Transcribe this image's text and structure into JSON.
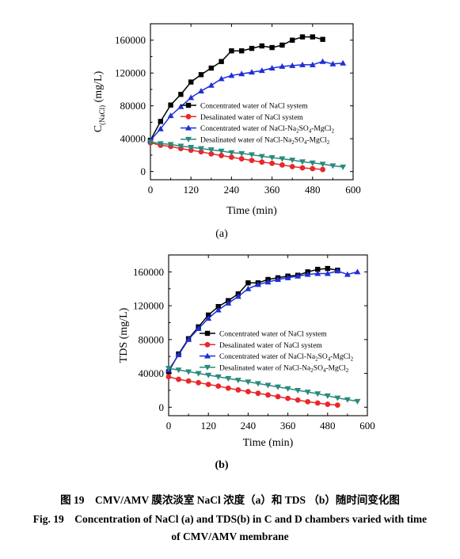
{
  "chart_data": [
    {
      "type": "line",
      "id": "a",
      "xlabel": "Time (min)",
      "ylabel": "C(NaCl) (mg/L)",
      "ylabel_main": "C",
      "ylabel_sub": "(NaCl)",
      "ylabel_unit": " (mg/L)",
      "xlim": [
        0,
        600
      ],
      "ylim": [
        -10000,
        180000
      ],
      "xticks": [
        0,
        120,
        240,
        360,
        480,
        600
      ],
      "yticks": [
        0,
        40000,
        80000,
        120000,
        160000
      ],
      "xtick_labels": [
        "0",
        "120",
        "240",
        "360",
        "480",
        "600"
      ],
      "ytick_labels": [
        "0",
        "40000",
        "80000",
        "120000",
        "160000"
      ],
      "legend_position": "center-right",
      "series": [
        {
          "name": "Concentrated water of NaCl system",
          "legend_parts": [
            "Concentrated water of NaCl system"
          ],
          "marker": "square",
          "color": "#000000",
          "x": [
            0,
            30,
            60,
            90,
            120,
            150,
            180,
            210,
            240,
            270,
            300,
            330,
            360,
            390,
            420,
            450,
            480,
            510
          ],
          "y": [
            38000,
            61000,
            81000,
            94000,
            109000,
            118000,
            126000,
            134000,
            147000,
            147000,
            150000,
            153000,
            151000,
            154000,
            160000,
            164000,
            164000,
            161000
          ]
        },
        {
          "name": "Desalinated water of NaCl system",
          "legend_parts": [
            "Desalinated water of NaCl system"
          ],
          "marker": "circle",
          "color": "#e8282a",
          "x": [
            0,
            30,
            60,
            90,
            120,
            150,
            180,
            210,
            240,
            270,
            300,
            330,
            360,
            390,
            420,
            450,
            480,
            510
          ],
          "y": [
            35000,
            32000,
            30500,
            28000,
            26000,
            24000,
            21500,
            19500,
            17500,
            15500,
            13500,
            11500,
            10000,
            8000,
            6000,
            4500,
            3500,
            2500
          ]
        },
        {
          "name": "Concentrated water of NaCl-Na2SO4-MgCl2",
          "legend_parts": [
            "Concentrated water of NaCl-Na",
            "2",
            "SO",
            "4",
            "-MgCl",
            "2"
          ],
          "marker": "triangle-up",
          "color": "#1f2fd6",
          "x": [
            0,
            30,
            60,
            90,
            120,
            150,
            180,
            210,
            240,
            270,
            300,
            330,
            360,
            390,
            420,
            450,
            480,
            510,
            540,
            570
          ],
          "y": [
            38000,
            52000,
            68000,
            79000,
            90000,
            98000,
            105000,
            113000,
            117000,
            119000,
            121000,
            123000,
            126000,
            128000,
            129000,
            130000,
            130000,
            134000,
            131000,
            132000
          ]
        },
        {
          "name": "Desalinated water of NaCl-Na2SO4-MgCl2",
          "legend_parts": [
            "Desalinated water of NaCl-Na",
            "2",
            "SO",
            "4",
            "-MgCl",
            "2"
          ],
          "marker": "triangle-down",
          "color": "#2a8a7d",
          "x": [
            0,
            30,
            60,
            90,
            120,
            150,
            180,
            210,
            240,
            270,
            300,
            330,
            360,
            390,
            420,
            450,
            480,
            510,
            540,
            570
          ],
          "y": [
            36000,
            34000,
            33000,
            31000,
            29500,
            28000,
            26500,
            25000,
            23000,
            22000,
            20500,
            18500,
            17000,
            15500,
            14000,
            12000,
            10500,
            9000,
            7000,
            5500
          ]
        }
      ],
      "panel_label": "(a)"
    },
    {
      "type": "line",
      "id": "b",
      "xlabel": "Time (min)",
      "ylabel": "TDS (mg/L)",
      "xlim": [
        0,
        600
      ],
      "ylim": [
        -10000,
        180000
      ],
      "xticks": [
        0,
        120,
        240,
        360,
        480,
        600
      ],
      "yticks": [
        0,
        40000,
        80000,
        120000,
        160000
      ],
      "xtick_labels": [
        "0",
        "120",
        "240",
        "360",
        "480",
        "600"
      ],
      "ytick_labels": [
        "0",
        "40000",
        "80000",
        "120000",
        "160000"
      ],
      "legend_position": "center-right",
      "series": [
        {
          "name": "Concentrated water of NaCl system",
          "legend_parts": [
            "Concentrated water of NaCl system"
          ],
          "marker": "square",
          "color": "#000000",
          "x": [
            0,
            30,
            60,
            90,
            120,
            150,
            180,
            210,
            240,
            270,
            300,
            330,
            360,
            390,
            420,
            450,
            480,
            510
          ],
          "y": [
            42000,
            63000,
            81000,
            95000,
            109000,
            119000,
            126000,
            134000,
            147000,
            147000,
            151000,
            153000,
            155000,
            156000,
            160000,
            163000,
            164000,
            162000
          ]
        },
        {
          "name": "Desalinated water of NaCl system",
          "legend_parts": [
            "Desalinated water of NaCl system"
          ],
          "marker": "circle",
          "color": "#e8282a",
          "x": [
            0,
            30,
            60,
            90,
            120,
            150,
            180,
            210,
            240,
            270,
            300,
            330,
            360,
            390,
            420,
            450,
            480,
            510
          ],
          "y": [
            36000,
            33000,
            31000,
            29000,
            27000,
            25000,
            22500,
            20500,
            18500,
            16500,
            14500,
            12500,
            10500,
            8500,
            6500,
            5000,
            3500,
            2500
          ]
        },
        {
          "name": "Concentrated water of NaCl-Na2SO4-MgCl2",
          "legend_parts": [
            "Concentrated water of NaCl-Na",
            "2",
            "SO",
            "4",
            "-MgCl",
            "2"
          ],
          "marker": "triangle-up",
          "color": "#1f2fd6",
          "x": [
            0,
            30,
            60,
            90,
            120,
            150,
            180,
            210,
            240,
            270,
            300,
            330,
            360,
            390,
            420,
            450,
            480,
            510,
            540,
            570
          ],
          "y": [
            44000,
            62000,
            80000,
            93000,
            105000,
            115000,
            123000,
            131000,
            140000,
            145000,
            148000,
            151000,
            153000,
            155000,
            157000,
            158000,
            158000,
            161000,
            157000,
            160000
          ]
        },
        {
          "name": "Desalinated water of NaCl-Na2SO4-MgCl2",
          "legend_parts": [
            "Desalinated water of NaCl-Na",
            "2",
            "SO",
            "4",
            "-MgCl",
            "2"
          ],
          "marker": "triangle-down",
          "color": "#2a8a7d",
          "x": [
            0,
            30,
            60,
            90,
            120,
            150,
            180,
            210,
            240,
            270,
            300,
            330,
            360,
            390,
            420,
            450,
            480,
            510,
            540,
            570
          ],
          "y": [
            46000,
            44000,
            42000,
            40000,
            38000,
            36000,
            34000,
            32000,
            30000,
            28000,
            26000,
            24000,
            22000,
            20000,
            18000,
            16000,
            13500,
            11000,
            9000,
            7000
          ]
        }
      ],
      "panel_label": "(b)"
    }
  ],
  "captions": {
    "cn": "图 19    CMV/AMV 膜浓淡室 NaCl 浓度（a）和 TDS （b）随时间变化图",
    "en_line1": "Fig. 19    Concentration of NaCl (a) and TDS(b) in C and D chambers varied with time",
    "en_line2": "of CMV/AMV membrane"
  }
}
